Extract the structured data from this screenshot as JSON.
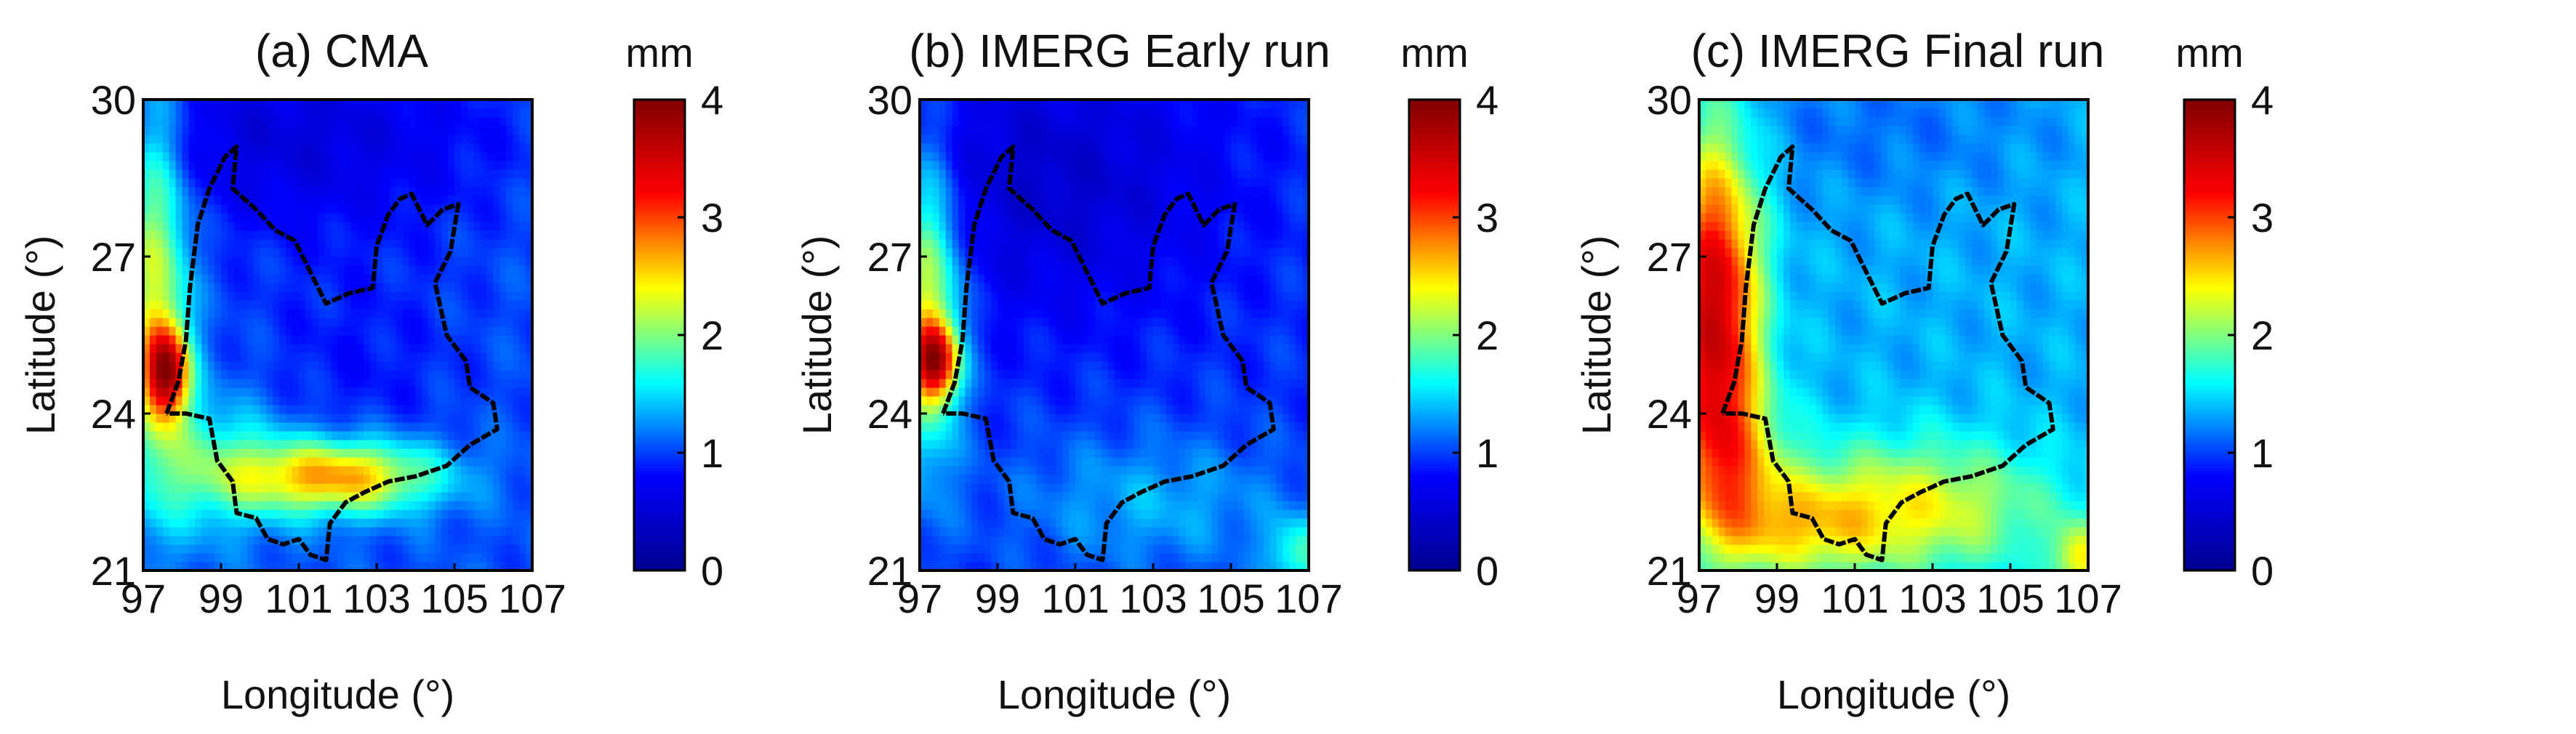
{
  "chart_data": [
    {
      "type": "heatmap",
      "title": "(a) CMA",
      "xlabel": "Longitude (°)",
      "ylabel": "Latitude (°)",
      "xlim": [
        97,
        107
      ],
      "ylim": [
        21,
        30
      ],
      "xticks": [
        "97",
        "99",
        "101",
        "103",
        "105",
        "107"
      ],
      "yticks": [
        "21",
        "24",
        "27",
        "30"
      ],
      "colorbar": {
        "unit": "mm",
        "range": [
          0,
          4
        ],
        "ticks": [
          "0",
          "1",
          "2",
          "3",
          "4"
        ]
      },
      "field": {
        "base": 1.05,
        "features": [
          {
            "lon": 97.3,
            "lat": 26.5,
            "value": 1.2,
            "spread_lon": 0.6,
            "spread_lat": 2.5
          },
          {
            "lon": 97.6,
            "lat": 24.8,
            "value": 2.2,
            "spread_lon": 0.4,
            "spread_lat": 0.6
          },
          {
            "lon": 102.0,
            "lat": 22.8,
            "value": 1.7,
            "spread_lon": 1.8,
            "spread_lat": 0.5
          },
          {
            "lon": 98.8,
            "lat": 23.0,
            "value": 0.7,
            "spread_lon": 1.3,
            "spread_lat": 0.9
          },
          {
            "lon": 101.0,
            "lat": 29.3,
            "value": -0.5,
            "spread_lon": 3.5,
            "spread_lat": 1.3
          },
          {
            "lon": 102.5,
            "lat": 25.0,
            "value": -0.2,
            "spread_lon": 2.0,
            "spread_lat": 1.5
          }
        ]
      }
    },
    {
      "type": "heatmap",
      "title": "(b) IMERG Early run",
      "xlabel": "Longitude (°)",
      "ylabel": "Latitude (°)",
      "xlim": [
        97,
        107
      ],
      "ylim": [
        21,
        30
      ],
      "xticks": [
        "97",
        "99",
        "101",
        "103",
        "105",
        "107"
      ],
      "yticks": [
        "21",
        "24",
        "27",
        "30"
      ],
      "colorbar": {
        "unit": "mm",
        "range": [
          0,
          4
        ],
        "ticks": [
          "0",
          "1",
          "2",
          "3",
          "4"
        ]
      },
      "field": {
        "base": 0.95,
        "features": [
          {
            "lon": 97.2,
            "lat": 26.0,
            "value": 1.4,
            "spread_lon": 0.6,
            "spread_lat": 2.0
          },
          {
            "lon": 97.4,
            "lat": 25.0,
            "value": 2.0,
            "spread_lon": 0.4,
            "spread_lat": 0.5
          },
          {
            "lon": 100.5,
            "lat": 28.5,
            "value": -0.5,
            "spread_lon": 3.0,
            "spread_lat": 1.8
          },
          {
            "lon": 103.0,
            "lat": 22.3,
            "value": 0.4,
            "spread_lon": 2.5,
            "spread_lat": 0.9
          },
          {
            "lon": 106.8,
            "lat": 21.3,
            "value": 0.8,
            "spread_lon": 0.6,
            "spread_lat": 0.5
          }
        ]
      }
    },
    {
      "type": "heatmap",
      "title": "(c) IMERG Final run",
      "xlabel": "Longitude (°)",
      "ylabel": "Latitude (°)",
      "xlim": [
        97,
        107
      ],
      "ylim": [
        21,
        30
      ],
      "xticks": [
        "97",
        "99",
        "101",
        "103",
        "105",
        "107"
      ],
      "yticks": [
        "21",
        "24",
        "27",
        "30"
      ],
      "colorbar": {
        "unit": "mm",
        "range": [
          0,
          4
        ],
        "ticks": [
          "0",
          "1",
          "2",
          "3",
          "4"
        ]
      },
      "field": {
        "base": 1.35,
        "features": [
          {
            "lon": 97.4,
            "lat": 26.0,
            "value": 2.2,
            "spread_lon": 0.8,
            "spread_lat": 2.3
          },
          {
            "lon": 97.8,
            "lat": 23.0,
            "value": 0.8,
            "spread_lon": 1.0,
            "spread_lat": 1.2
          },
          {
            "lon": 102.5,
            "lat": 22.2,
            "value": 1.0,
            "spread_lon": 2.5,
            "spread_lat": 0.9
          },
          {
            "lon": 99.5,
            "lat": 21.8,
            "value": 0.7,
            "spread_lon": 1.5,
            "spread_lat": 0.7
          },
          {
            "lon": 101.5,
            "lat": 29.5,
            "value": -0.2,
            "spread_lon": 3.0,
            "spread_lat": 1.0
          },
          {
            "lon": 106.8,
            "lat": 21.2,
            "value": 1.0,
            "spread_lon": 0.5,
            "spread_lat": 0.5
          }
        ]
      }
    }
  ],
  "region_boundary": {
    "name": "Yunnan province outline",
    "lon_lat": [
      [
        97.6,
        24.0
      ],
      [
        97.9,
        24.6
      ],
      [
        98.1,
        25.4
      ],
      [
        98.2,
        26.4
      ],
      [
        98.4,
        27.6
      ],
      [
        98.7,
        28.3
      ],
      [
        99.1,
        28.9
      ],
      [
        99.4,
        29.1
      ],
      [
        99.3,
        28.3
      ],
      [
        99.9,
        27.9
      ],
      [
        100.4,
        27.5
      ],
      [
        100.9,
        27.3
      ],
      [
        101.3,
        26.7
      ],
      [
        101.7,
        26.1
      ],
      [
        102.3,
        26.3
      ],
      [
        102.9,
        26.4
      ],
      [
        103.0,
        27.2
      ],
      [
        103.3,
        27.8
      ],
      [
        103.6,
        28.1
      ],
      [
        103.9,
        28.2
      ],
      [
        104.3,
        27.6
      ],
      [
        104.7,
        27.9
      ],
      [
        105.1,
        28.0
      ],
      [
        104.9,
        27.1
      ],
      [
        104.5,
        26.5
      ],
      [
        104.8,
        25.5
      ],
      [
        105.3,
        25.0
      ],
      [
        105.4,
        24.5
      ],
      [
        106.0,
        24.2
      ],
      [
        106.1,
        23.7
      ],
      [
        105.4,
        23.4
      ],
      [
        104.8,
        23.0
      ],
      [
        104.0,
        22.8
      ],
      [
        103.3,
        22.7
      ],
      [
        102.7,
        22.5
      ],
      [
        102.2,
        22.3
      ],
      [
        101.8,
        21.9
      ],
      [
        101.7,
        21.2
      ],
      [
        101.3,
        21.3
      ],
      [
        101.0,
        21.6
      ],
      [
        100.6,
        21.5
      ],
      [
        100.2,
        21.6
      ],
      [
        99.9,
        22.0
      ],
      [
        99.4,
        22.1
      ],
      [
        99.3,
        22.7
      ],
      [
        98.9,
        23.1
      ],
      [
        98.7,
        23.9
      ],
      [
        98.1,
        24.0
      ],
      [
        97.6,
        24.0
      ]
    ]
  },
  "colors": {
    "colormap": [
      "#00008f",
      "#0000ff",
      "#00ffff",
      "#ffff00",
      "#ff0000",
      "#800000"
    ],
    "boundary": "#000000",
    "frame": "#000000"
  }
}
